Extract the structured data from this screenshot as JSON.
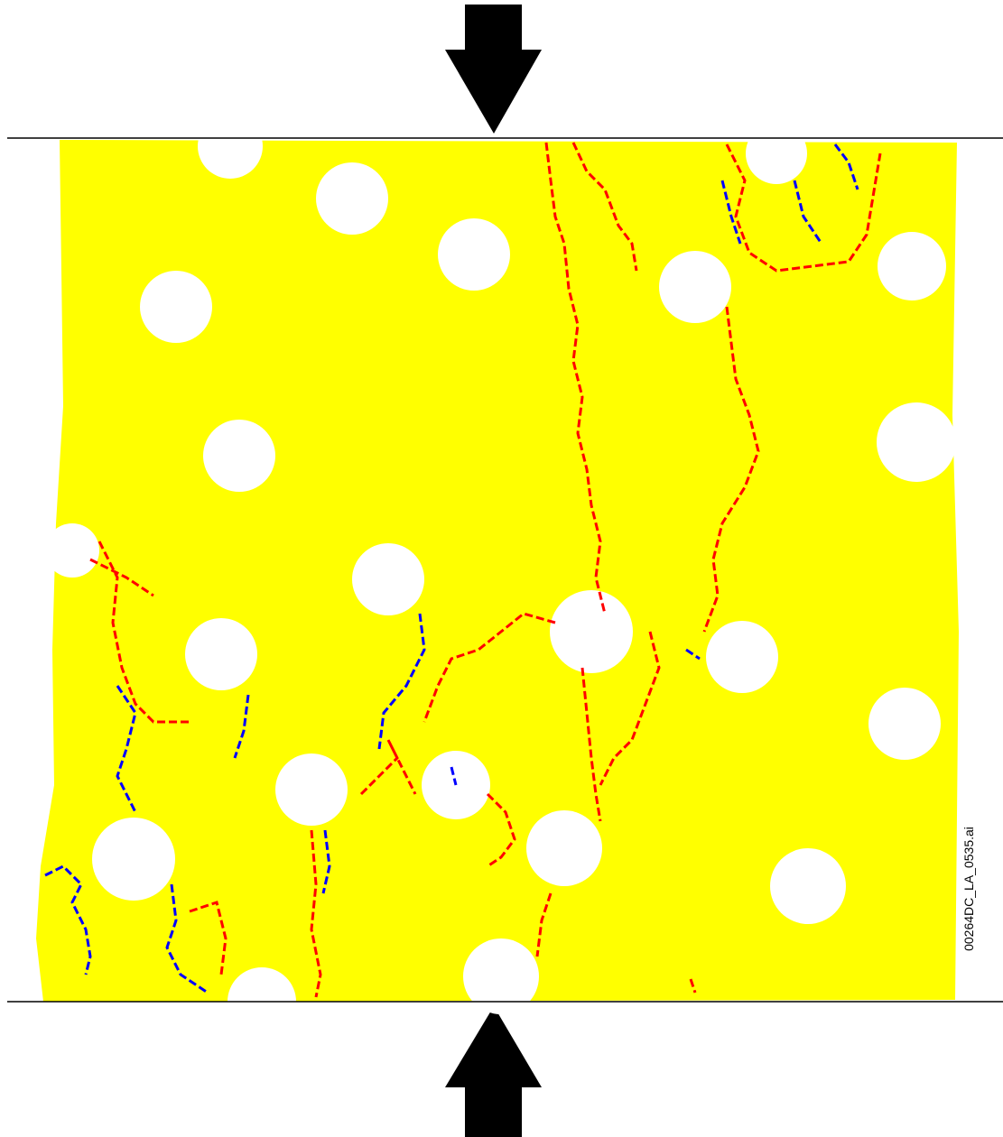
{
  "figure": {
    "label": "00264DC_LA_0535.ai"
  }
}
